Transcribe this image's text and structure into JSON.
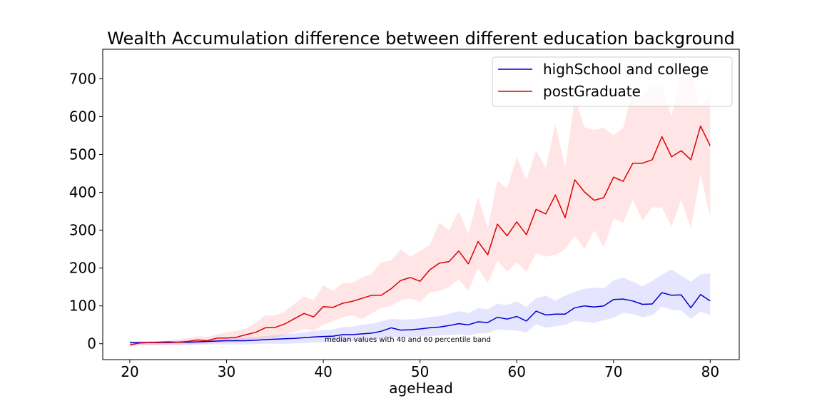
{
  "chart_data": {
    "type": "line",
    "title": "Wealth Accumulation difference between different education background",
    "xlabel": "ageHead",
    "ylabel": "",
    "xlim": [
      17.2,
      83
    ],
    "ylim": [
      -42,
      778
    ],
    "xticks": [
      20,
      30,
      40,
      50,
      60,
      70,
      80
    ],
    "yticks": [
      0,
      100,
      200,
      300,
      400,
      500,
      600,
      700
    ],
    "grid": false,
    "legend_position": "top-right",
    "annotation": "median values with 40 and 60 percentile band",
    "x": [
      20,
      21,
      22,
      23,
      24,
      25,
      26,
      27,
      28,
      29,
      30,
      31,
      32,
      33,
      34,
      35,
      36,
      37,
      38,
      39,
      40,
      41,
      42,
      43,
      44,
      45,
      46,
      47,
      48,
      49,
      50,
      51,
      52,
      53,
      54,
      55,
      56,
      57,
      58,
      59,
      60,
      61,
      62,
      63,
      64,
      65,
      66,
      67,
      68,
      69,
      70,
      71,
      72,
      73,
      74,
      75,
      76,
      77,
      78,
      79,
      80
    ],
    "series": [
      {
        "name": "highSchool and college",
        "color": "#0000cc",
        "band_color": "#0000ff",
        "median": [
          3,
          3,
          3,
          3,
          3,
          4,
          4,
          5,
          6,
          7,
          8,
          8,
          8,
          9,
          11,
          12,
          13,
          14,
          16,
          18,
          19,
          20,
          24,
          24,
          26,
          28,
          33,
          42,
          36,
          37,
          39,
          42,
          44,
          48,
          53,
          50,
          58,
          56,
          70,
          65,
          72,
          60,
          86,
          76,
          78,
          78,
          95,
          100,
          97,
          100,
          117,
          118,
          113,
          104,
          105,
          135,
          128,
          129,
          95,
          130,
          113
        ],
        "lower": [
          -5,
          -4,
          -4,
          -4,
          -4,
          -3,
          -3,
          -3,
          -2,
          -2,
          -2,
          -2,
          -2,
          -1,
          0,
          0,
          0,
          1,
          2,
          3,
          4,
          5,
          7,
          7,
          8,
          10,
          14,
          18,
          16,
          17,
          19,
          20,
          22,
          23,
          25,
          22,
          27,
          28,
          38,
          36,
          35,
          30,
          52,
          42,
          46,
          50,
          60,
          58,
          55,
          62,
          68,
          82,
          78,
          70,
          75,
          98,
          90,
          88,
          66,
          85,
          75
        ],
        "upper": [
          6,
          6,
          6,
          7,
          7,
          8,
          9,
          10,
          11,
          12,
          14,
          15,
          16,
          17,
          20,
          22,
          24,
          27,
          30,
          34,
          36,
          38,
          44,
          45,
          50,
          53,
          59,
          66,
          64,
          64,
          66,
          70,
          73,
          79,
          86,
          81,
          94,
          91,
          106,
          102,
          112,
          97,
          120,
          127,
          114,
          127,
          137,
          145,
          148,
          146,
          167,
          175,
          164,
          152,
          166,
          183,
          196,
          180,
          164,
          183,
          186
        ]
      },
      {
        "name": "postGraduate",
        "color": "#dd0000",
        "band_color": "#ff0000",
        "median": [
          -3,
          2,
          3,
          4,
          5,
          4,
          6,
          10,
          8,
          15,
          15,
          17,
          24,
          30,
          42,
          43,
          52,
          66,
          80,
          71,
          98,
          96,
          107,
          112,
          120,
          128,
          128,
          145,
          167,
          175,
          165,
          195,
          213,
          217,
          245,
          211,
          270,
          235,
          316,
          285,
          322,
          288,
          355,
          343,
          393,
          333,
          433,
          401,
          379,
          386,
          440,
          429,
          477,
          477,
          486,
          547,
          494,
          510,
          486,
          575,
          523
        ],
        "lower": [
          -8,
          -5,
          -4,
          -4,
          -3,
          -3,
          -2,
          0,
          0,
          2,
          3,
          4,
          7,
          10,
          15,
          17,
          22,
          30,
          40,
          35,
          50,
          60,
          70,
          75,
          65,
          80,
          95,
          100,
          115,
          120,
          110,
          135,
          140,
          150,
          170,
          140,
          200,
          160,
          220,
          190,
          215,
          190,
          240,
          230,
          235,
          250,
          285,
          250,
          300,
          255,
          330,
          320,
          380,
          325,
          360,
          360,
          310,
          380,
          305,
          448,
          335
        ],
        "upper": [
          3,
          6,
          7,
          8,
          9,
          12,
          15,
          20,
          18,
          25,
          30,
          34,
          40,
          55,
          75,
          75,
          85,
          105,
          125,
          115,
          154,
          140,
          160,
          160,
          175,
          185,
          215,
          220,
          250,
          230,
          245,
          260,
          320,
          300,
          350,
          290,
          388,
          305,
          430,
          410,
          493,
          433,
          510,
          465,
          580,
          465,
          650,
          572,
          565,
          570,
          550,
          570,
          670,
          650,
          680,
          680,
          600,
          720,
          725,
          625,
          665
        ]
      }
    ]
  }
}
